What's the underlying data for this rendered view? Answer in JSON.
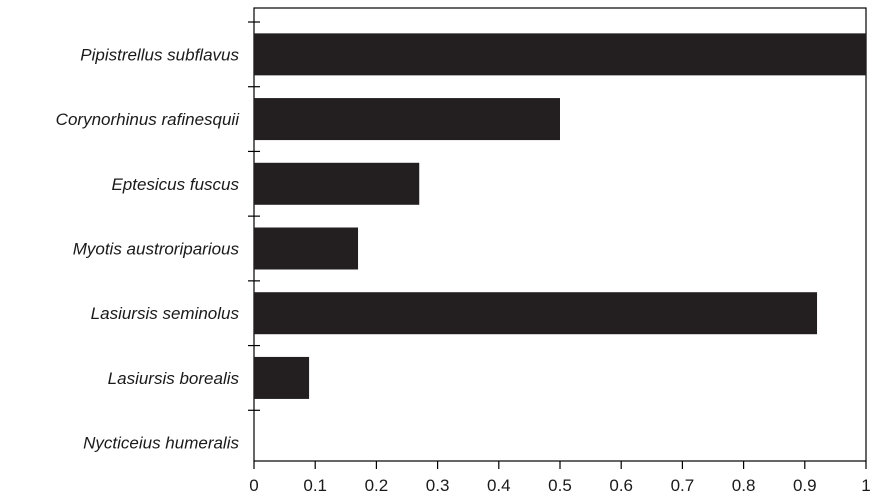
{
  "chart_data": {
    "type": "bar",
    "orientation": "horizontal",
    "title": "",
    "xlabel": "",
    "ylabel": "",
    "categories": [
      "Pipistrellus subflavus",
      "Corynorhinus rafinesquii",
      "Eptesicus fuscus",
      "Myotis austroriparious",
      "Lasiursis seminolus",
      "Lasiursis borealis",
      "Nycticeius humeralis"
    ],
    "values": [
      1.0,
      0.5,
      0.27,
      0.17,
      0.92,
      0.09,
      0.0
    ],
    "xlim": [
      0,
      1
    ],
    "xticks": [
      "0",
      "0.1",
      "0.2",
      "0.3",
      "0.4",
      "0.5",
      "0.6",
      "0.7",
      "0.8",
      "0.9",
      "1"
    ],
    "grid": false,
    "legend": "none",
    "colors": {
      "bar": "#231f20",
      "axis": "#000000",
      "text": "#1a1a1a"
    }
  }
}
